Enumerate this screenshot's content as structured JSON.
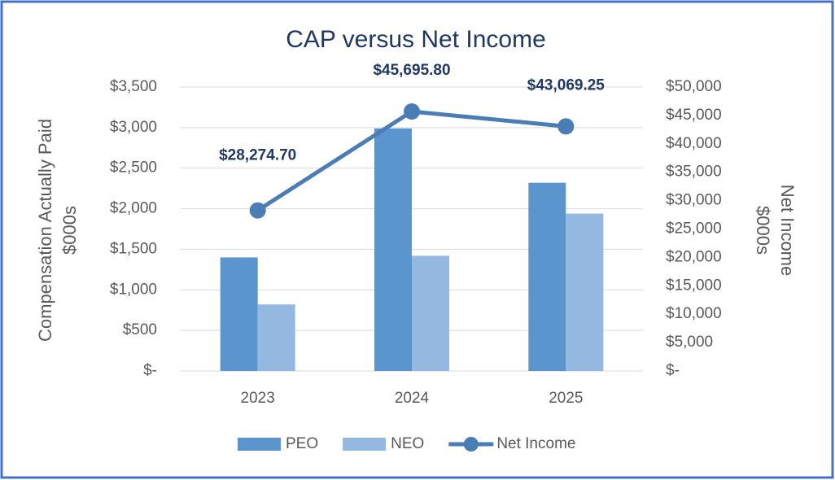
{
  "chart_data": {
    "type": "bar",
    "title": "CAP versus Net Income",
    "y_label": [
      "Compensation Actually Paid",
      "$000s"
    ],
    "y2_label": [
      "Net Income",
      "$000s"
    ],
    "categories": [
      "2023",
      "2024",
      "2025"
    ],
    "series": [
      {
        "name": "PEO",
        "color": "#5b95cd",
        "values": [
          1400,
          2990,
          2320
        ]
      },
      {
        "name": "NEO",
        "color": "#95b8e1",
        "values": [
          820,
          1420,
          1940
        ]
      },
      {
        "name": "Net Income",
        "type": "line",
        "axis": "y2",
        "color": "#4a7db5",
        "values": [
          28274.7,
          45695.8,
          43069.25
        ],
        "value_labels": [
          "$28,274.70",
          "$45,695.80",
          "$43,069.25"
        ]
      }
    ],
    "ylim": [
      0,
      3500
    ],
    "yticks": [
      {
        "value": 0,
        "label": "$-"
      },
      {
        "value": 500,
        "label": "$500"
      },
      {
        "value": 1000,
        "label": "$1,000"
      },
      {
        "value": 1500,
        "label": "$1,500"
      },
      {
        "value": 2000,
        "label": "$2,000"
      },
      {
        "value": 2500,
        "label": "$2,500"
      },
      {
        "value": 3000,
        "label": "$3,000"
      },
      {
        "value": 3500,
        "label": "$3,500"
      }
    ],
    "y2lim": [
      0,
      50000
    ],
    "y2ticks": [
      {
        "value": 0,
        "label": "$-"
      },
      {
        "value": 5000,
        "label": "$5,000"
      },
      {
        "value": 10000,
        "label": "$10,000"
      },
      {
        "value": 15000,
        "label": "$15,000"
      },
      {
        "value": 20000,
        "label": "$20,000"
      },
      {
        "value": 25000,
        "label": "$25,000"
      },
      {
        "value": 30000,
        "label": "$30,000"
      },
      {
        "value": 35000,
        "label": "$35,000"
      },
      {
        "value": 40000,
        "label": "$40,000"
      },
      {
        "value": 45000,
        "label": "$45,000"
      },
      {
        "value": 50000,
        "label": "$50,000"
      }
    ],
    "grid": true,
    "legend": "bottom"
  }
}
